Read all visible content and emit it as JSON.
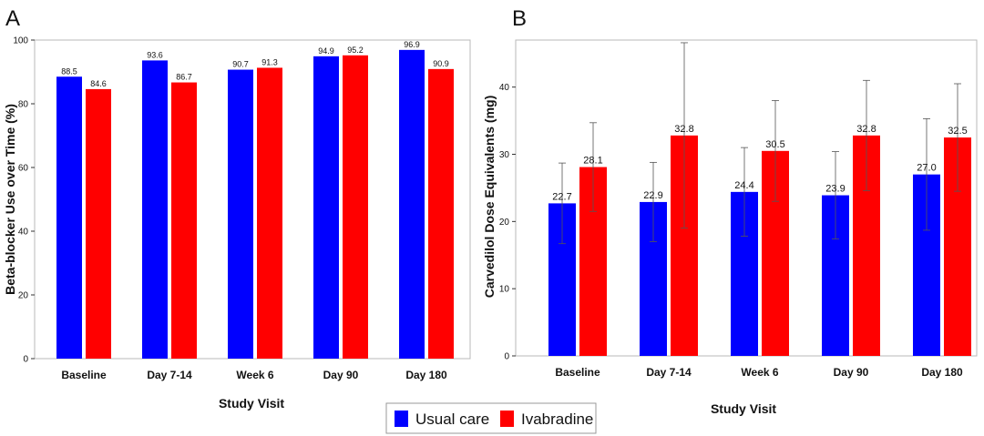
{
  "colors": {
    "usual_care": "#0000ff",
    "ivabradine": "#ff0000",
    "plot_bg": "#ffffff",
    "frame": "#b8b8b8"
  },
  "legend": [
    {
      "label": "Usual care",
      "color": "#0000ff"
    },
    {
      "label": "Ivabradine",
      "color": "#ff0000"
    }
  ],
  "chart_data": [
    {
      "panel": "A",
      "type": "bar",
      "categories": [
        "Baseline",
        "Day 7-14",
        "Week 6",
        "Day 90",
        "Day 180"
      ],
      "series": [
        {
          "name": "Usual care",
          "values": [
            88.5,
            93.6,
            90.7,
            94.9,
            96.9
          ],
          "labels": [
            "88.5",
            "93.6",
            "90.7",
            "94.9",
            "96.9"
          ]
        },
        {
          "name": "Ivabradine",
          "values": [
            84.6,
            86.7,
            91.3,
            95.2,
            90.9
          ],
          "labels": [
            "84.6",
            "86.7",
            "91.3",
            "95.2",
            "90.9"
          ]
        }
      ],
      "xlabel": "Study Visit",
      "ylabel": "Beta-blocker Use over Time (%)",
      "ylim": [
        0,
        100
      ],
      "yticks": [
        "0",
        "20",
        "40",
        "60",
        "80",
        "100"
      ],
      "grid": false
    },
    {
      "panel": "B",
      "type": "bar",
      "categories": [
        "Baseline",
        "Day 7-14",
        "Week 6",
        "Day 90",
        "Day 180"
      ],
      "series": [
        {
          "name": "Usual care",
          "values": [
            22.7,
            22.9,
            24.4,
            23.9,
            27.0
          ],
          "labels": [
            "22.7",
            "22.9",
            "24.4",
            "23.9",
            "27.0"
          ],
          "error_upper": [
            28.7,
            28.8,
            31.0,
            30.4,
            35.3
          ],
          "error_lower": [
            16.7,
            17.0,
            17.8,
            17.4,
            18.7
          ]
        },
        {
          "name": "Ivabradine",
          "values": [
            28.1,
            32.8,
            30.5,
            32.8,
            32.5
          ],
          "labels": [
            "28.1",
            "32.8",
            "30.5",
            "32.8",
            "32.5"
          ],
          "error_upper": [
            34.7,
            46.6,
            38.0,
            41.0,
            40.5
          ],
          "error_lower": [
            21.5,
            19.0,
            23.0,
            24.6,
            24.5
          ]
        }
      ],
      "xlabel": "Study Visit",
      "ylabel": "Carvedilol Dose Equivalents (mg)",
      "ylim": [
        0,
        47
      ],
      "yticks": [
        "0",
        "10",
        "20",
        "30",
        "40"
      ],
      "grid": false
    }
  ]
}
